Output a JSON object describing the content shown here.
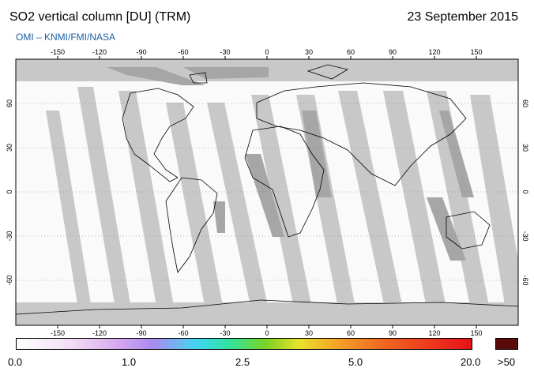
{
  "header": {
    "title": "SO2 vertical column [DU] (TRM)",
    "date": "23 September 2015",
    "credit": "OMI  –  KNMI/FMI/NASA"
  },
  "map": {
    "lon_ticks": [
      "-150",
      "-120",
      "-90",
      "-60",
      "-30",
      "0",
      "30",
      "60",
      "90",
      "120",
      "150"
    ],
    "lat_ticks": [
      "60",
      "30",
      "0",
      "-30",
      "-60"
    ],
    "no_data_color": "#c8c8c8",
    "dark_region_color": "#a6a6a6",
    "background_color": "#fafafa"
  },
  "colorbar": {
    "labels": [
      "0.0",
      "1.0",
      "2.5",
      "5.0",
      "20.0"
    ],
    "overflow_label": ">50",
    "overflow_color": "#5a0a0a"
  }
}
